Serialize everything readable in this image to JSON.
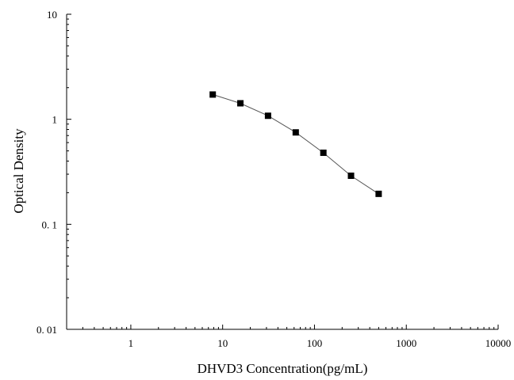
{
  "chart_data": {
    "type": "line",
    "xlabel": "DHVD3 Concentration(pg/mL)",
    "ylabel": "Optical Density",
    "x_scale": "log",
    "y_scale": "log",
    "xlim": [
      0.2,
      10000
    ],
    "ylim": [
      0.01,
      10
    ],
    "x_ticks": [
      1,
      10,
      100,
      1000,
      10000
    ],
    "x_tick_labels": [
      "1",
      "10",
      "100",
      "1000",
      "10000"
    ],
    "y_ticks": [
      0.01,
      0.1,
      1,
      10
    ],
    "y_tick_labels": [
      "0. 01",
      "0. 1",
      "1",
      "10"
    ],
    "grid": false,
    "series": [
      {
        "marker": "square",
        "color": "#000000",
        "x": [
          7.8,
          15.6,
          31.2,
          62.5,
          125,
          250,
          500
        ],
        "y": [
          1.72,
          1.42,
          1.08,
          0.75,
          0.48,
          0.29,
          0.195
        ]
      }
    ]
  }
}
